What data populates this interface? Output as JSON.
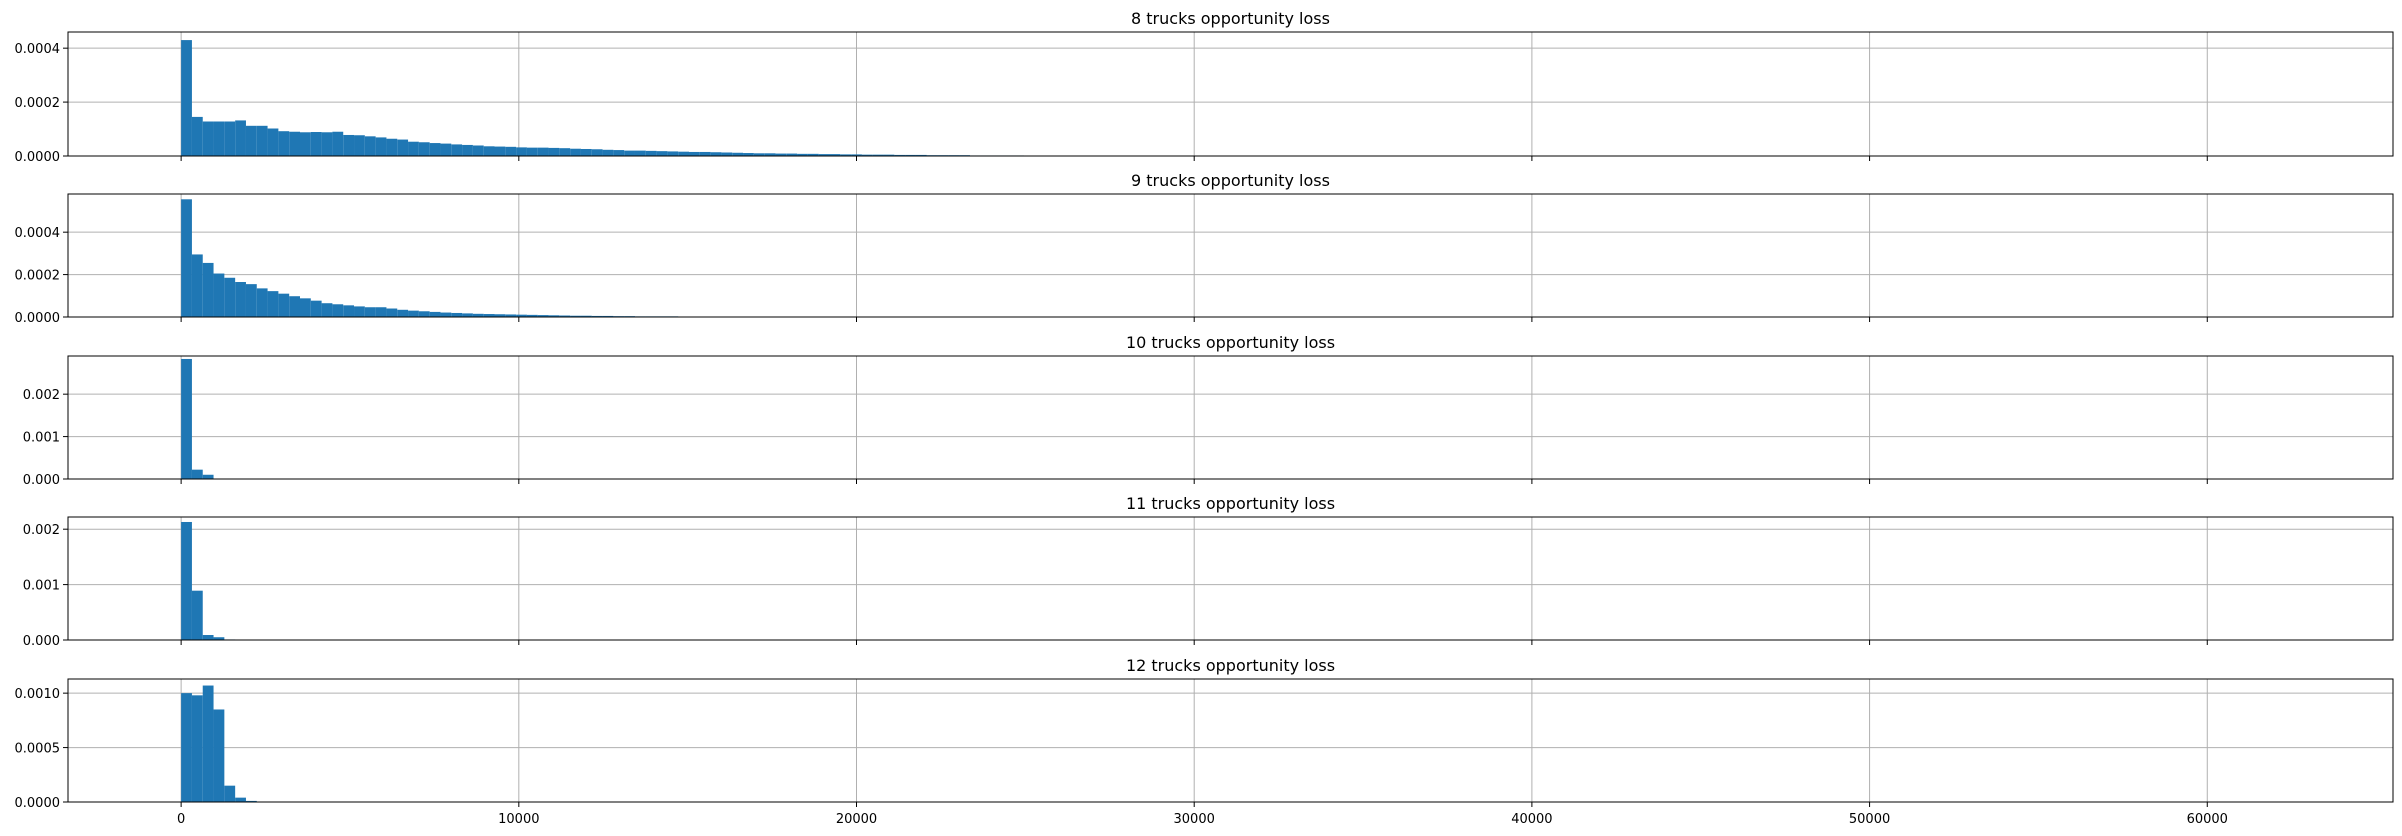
{
  "chart_data": [
    {
      "type": "bar",
      "title": "8 trucks opportunity loss",
      "xlabel": "",
      "ylabel": "",
      "xlim": [
        -3350,
        65500
      ],
      "ylim": [
        0,
        0.00046
      ],
      "grid": true,
      "yticks": [
        0,
        0.0002,
        0.0004
      ],
      "ytick_labels": [
        "0.0000",
        "0.0002",
        "0.0004"
      ],
      "bin_width": 320,
      "bin_start": 0,
      "values": [
        0.00043,
        0.000145,
        0.000128,
        0.000128,
        0.000128,
        0.000132,
        0.000112,
        0.000112,
        0.000102,
        9.2e-05,
        9e-05,
        8.8e-05,
        8.9e-05,
        8.8e-05,
        9e-05,
        7.8e-05,
        7.7e-05,
        7.3e-05,
        6.9e-05,
        6.4e-05,
        6.1e-05,
        5.3e-05,
        5.1e-05,
        4.8e-05,
        4.6e-05,
        4.3e-05,
        4.1e-05,
        3.9e-05,
        3.6e-05,
        3.5e-05,
        3.4e-05,
        3.2e-05,
        3.1e-05,
        3.1e-05,
        3e-05,
        2.9e-05,
        2.7e-05,
        2.6e-05,
        2.5e-05,
        2.3e-05,
        2.2e-05,
        2e-05,
        2e-05,
        1.9e-05,
        1.8e-05,
        1.7e-05,
        1.6e-05,
        1.5e-05,
        1.5e-05,
        1.4e-05,
        1.3e-05,
        1.2e-05,
        1.1e-05,
        1e-05,
        1e-05,
        9e-06,
        9e-06,
        8e-06,
        8e-06,
        7e-06,
        7e-06,
        6e-06,
        6e-06,
        5e-06,
        5e-06,
        5e-06,
        4e-06,
        4e-06,
        4e-06,
        3e-06,
        3e-06,
        3e-06,
        3e-06,
        2e-06,
        2e-06,
        2e-06,
        2e-06,
        2e-06,
        1e-06,
        1e-06,
        1e-06,
        1e-06,
        1e-06,
        1e-06,
        1e-06,
        1e-06,
        1e-06,
        1e-06,
        0,
        0,
        0,
        0,
        0,
        0,
        0,
        0,
        0,
        0,
        0,
        0,
        0,
        0,
        0,
        0,
        0,
        0,
        0,
        0,
        0,
        0,
        0,
        0,
        0,
        0,
        0,
        1e-06
      ]
    },
    {
      "type": "bar",
      "title": "9 trucks opportunity loss",
      "xlabel": "",
      "ylabel": "",
      "xlim": [
        -3350,
        65500
      ],
      "ylim": [
        0,
        0.00058
      ],
      "grid": true,
      "yticks": [
        0,
        0.0002,
        0.0004
      ],
      "ytick_labels": [
        "0.0000",
        "0.0002",
        "0.0004"
      ],
      "bin_width": 320,
      "bin_start": 0,
      "values": [
        0.000555,
        0.000295,
        0.000255,
        0.000205,
        0.000185,
        0.000165,
        0.000155,
        0.000135,
        0.000122,
        0.00011,
        9.8e-05,
        8.8e-05,
        7.7e-05,
        6.5e-05,
        6e-05,
        5.5e-05,
        5e-05,
        4.6e-05,
        4.6e-05,
        4e-05,
        3.4e-05,
        3e-05,
        2.7e-05,
        2.4e-05,
        2.1e-05,
        1.9e-05,
        1.7e-05,
        1.5e-05,
        1.4e-05,
        1.3e-05,
        1.2e-05,
        1.1e-05,
        1e-05,
        9e-06,
        8e-06,
        7e-06,
        6e-06,
        6e-06,
        5e-06,
        5e-06,
        4e-06,
        4e-06,
        3e-06,
        3e-06,
        3e-06,
        3e-06,
        2e-06,
        2e-06,
        2e-06,
        2e-06,
        2e-06,
        1e-06,
        1e-06,
        1e-06,
        1e-06,
        1e-06,
        1e-06,
        1e-06,
        1e-06,
        1e-06,
        1e-06,
        1e-06,
        1e-06,
        1e-06,
        1e-06,
        1e-06
      ]
    },
    {
      "type": "bar",
      "title": "10 trucks opportunity loss",
      "xlabel": "",
      "ylabel": "",
      "xlim": [
        -3350,
        65500
      ],
      "ylim": [
        0,
        0.0029
      ],
      "grid": true,
      "yticks": [
        0,
        0.001,
        0.002
      ],
      "ytick_labels": [
        "0.000",
        "0.001",
        "0.002"
      ],
      "bin_width": 320,
      "bin_start": 0,
      "values": [
        0.00283,
        0.00022,
        0.0001,
        1e-05
      ]
    },
    {
      "type": "bar",
      "title": "11 trucks opportunity loss",
      "xlabel": "",
      "ylabel": "",
      "xlim": [
        -3350,
        65500
      ],
      "ylim": [
        0,
        0.00222
      ],
      "grid": true,
      "yticks": [
        0,
        0.001,
        0.002
      ],
      "ytick_labels": [
        "0.000",
        "0.001",
        "0.002"
      ],
      "bin_width": 320,
      "bin_start": 0,
      "values": [
        0.00213,
        0.00089,
        9e-05,
        5e-05,
        1e-05
      ]
    },
    {
      "type": "bar",
      "title": "12 trucks opportunity loss",
      "xlabel": "",
      "ylabel": "",
      "xlim": [
        -3350,
        65500
      ],
      "ylim": [
        0,
        0.00113
      ],
      "grid": true,
      "yticks": [
        0,
        0.0005,
        0.001
      ],
      "ytick_labels": [
        "0.0000",
        "0.0005",
        "0.0010"
      ],
      "bin_width": 320,
      "bin_start": 0,
      "values": [
        0.001,
        0.00098,
        0.00107,
        0.00085,
        0.00015,
        4e-05,
        1e-05
      ]
    }
  ],
  "shared_x_axis": {
    "ticks": [
      0,
      10000,
      20000,
      30000,
      40000,
      50000,
      60000
    ],
    "tick_labels": [
      "0",
      "10000",
      "20000",
      "30000",
      "40000",
      "50000",
      "60000"
    ]
  },
  "colors": {
    "bar": "#1f77b4",
    "grid": "#b0b0b0",
    "axes": "#000000",
    "background": "#ffffff"
  }
}
